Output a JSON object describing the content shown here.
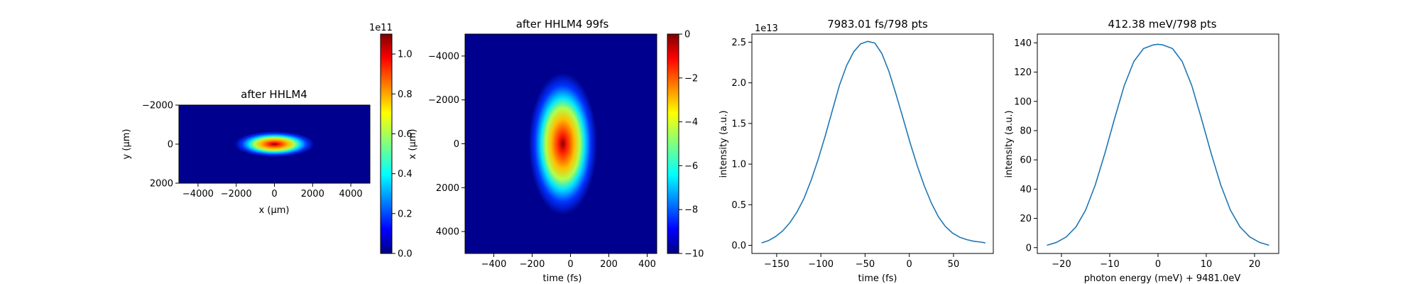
{
  "colors": {
    "line": "#1f77b4",
    "frame": "#000000",
    "colormap": "jet"
  },
  "chart_data": [
    {
      "type": "heatmap",
      "title": "after HHLM4",
      "xlabel": "x (μm)",
      "ylabel": "y (μm)",
      "xlim": [
        -5000,
        5000
      ],
      "ylim": [
        2000,
        -2000
      ],
      "xticks": [
        "−4000",
        "−2000",
        "0",
        "2000",
        "4000"
      ],
      "yticks": [
        "−2000",
        "0",
        "2000"
      ],
      "colorbar": {
        "range": [
          0,
          1.1
        ],
        "ticks": [
          "0.0",
          "0.2",
          "0.4",
          "0.6",
          "0.8",
          "1.0"
        ],
        "offset_text": "1e11"
      },
      "peak": {
        "x": 0,
        "y": 0,
        "value": 1.1
      }
    },
    {
      "type": "heatmap",
      "title": "after HHLM4 99fs",
      "xlabel": "time (fs)",
      "ylabel": "x (μm)",
      "xlim": [
        -550,
        450
      ],
      "ylim": [
        -5000,
        5000
      ],
      "xticks": [
        "−400",
        "−200",
        "0",
        "200",
        "400"
      ],
      "yticks": [
        "−4000",
        "−2000",
        "0",
        "2000",
        "4000"
      ],
      "colorbar": {
        "range": [
          -10,
          0
        ],
        "ticks": [
          "0",
          "−2",
          "−4",
          "−6",
          "−8",
          "−10"
        ]
      },
      "peak": {
        "x": -40,
        "y": 0,
        "value": 0
      }
    },
    {
      "type": "line",
      "title": "7983.01 fs/798 pts",
      "xlabel": "time (fs)",
      "ylabel": "intensity (a.u.)",
      "offset_text": "1e13",
      "xlim": [
        -178,
        95
      ],
      "ylim": [
        -0.1,
        2.6
      ],
      "xticks": [
        "−150",
        "−100",
        "−50",
        "0",
        "50"
      ],
      "yticks": [
        "0.0",
        "0.5",
        "1.0",
        "1.5",
        "2.0",
        "2.5"
      ],
      "series": [
        {
          "x": [
            -167,
            -159,
            -151,
            -143,
            -135,
            -127,
            -119,
            -111,
            -103,
            -95,
            -87,
            -79,
            -71,
            -63,
            -55,
            -47,
            -39,
            -31,
            -23,
            -15,
            -7,
            1,
            9,
            17,
            25,
            33,
            41,
            49,
            57,
            65,
            73,
            81,
            86
          ],
          "y": [
            0.03,
            0.06,
            0.11,
            0.18,
            0.28,
            0.41,
            0.58,
            0.8,
            1.06,
            1.35,
            1.66,
            1.97,
            2.21,
            2.38,
            2.48,
            2.51,
            2.49,
            2.36,
            2.14,
            1.86,
            1.56,
            1.26,
            0.98,
            0.73,
            0.52,
            0.35,
            0.23,
            0.15,
            0.1,
            0.07,
            0.05,
            0.04,
            0.03
          ]
        }
      ]
    },
    {
      "type": "line",
      "title": "412.38 meV/798 pts",
      "xlabel": "photon energy (meV) + 9481.0eV",
      "ylabel": "intensity (a.u.)",
      "xlim": [
        -25,
        25
      ],
      "ylim": [
        -4,
        146
      ],
      "xticks": [
        "−20",
        "−10",
        "0",
        "10",
        "20"
      ],
      "yticks": [
        "0",
        "20",
        "40",
        "60",
        "80",
        "100",
        "120",
        "140"
      ],
      "series": [
        {
          "x": [
            -23,
            -21,
            -19,
            -17,
            -15,
            -13,
            -11,
            -9,
            -7,
            -5,
            -3,
            -1,
            0,
            1,
            3,
            5,
            7,
            9,
            11,
            13,
            15,
            17,
            19,
            21,
            23
          ],
          "y": [
            1.6,
            3.6,
            7.3,
            14.1,
            25.6,
            42.8,
            64.5,
            88.2,
            110.7,
            127.3,
            136.1,
            138.6,
            139,
            138.6,
            136.1,
            127.3,
            110.7,
            88.2,
            64.5,
            42.8,
            25.6,
            14.1,
            7.3,
            3.6,
            1.6
          ]
        }
      ]
    }
  ]
}
